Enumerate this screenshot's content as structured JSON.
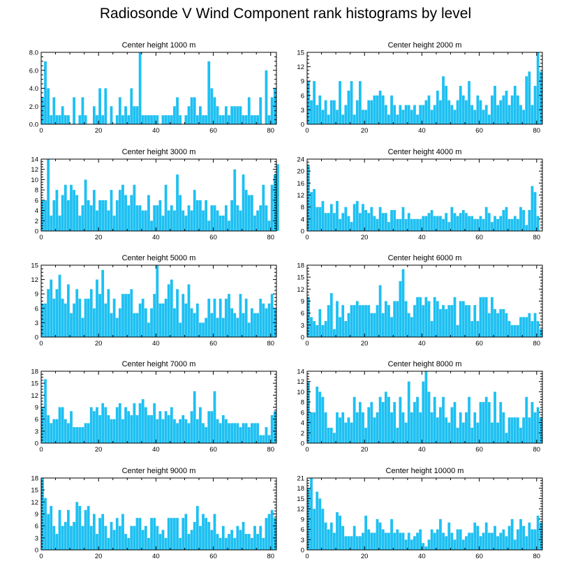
{
  "title": "Radiosonde V Wind Component rank histograms by level",
  "bar_color": "#1ec0f2",
  "chart_data": [
    {
      "type": "bar",
      "title": "Center height 1000 m",
      "xticks": [
        0,
        20,
        40,
        60,
        80
      ],
      "yticks": [
        "0.0",
        "2.0",
        "4.0",
        "6.0",
        "8.0"
      ],
      "ylim": [
        0,
        8
      ],
      "xlim": [
        0,
        82
      ],
      "values": [
        3,
        7,
        4,
        1,
        3,
        1,
        1,
        2,
        1,
        1,
        0,
        3,
        0,
        1,
        3,
        1,
        0,
        0,
        2,
        1,
        4,
        1,
        4,
        0,
        2,
        0,
        1,
        3,
        1,
        2,
        1,
        4,
        2,
        2,
        8,
        1,
        1,
        1,
        1,
        1,
        1,
        0,
        1,
        1,
        1,
        1,
        2,
        3,
        1,
        0,
        1,
        2,
        3,
        3,
        1,
        2,
        1,
        1,
        7,
        4,
        3,
        2,
        1,
        1,
        2,
        1,
        2,
        2,
        2,
        2,
        1,
        1,
        3,
        1,
        1,
        1,
        3,
        0,
        6,
        1,
        3,
        4
      ]
    },
    {
      "type": "bar",
      "title": "Center height 2000 m",
      "xticks": [
        0,
        20,
        40,
        60,
        80
      ],
      "yticks": [
        "0",
        "3",
        "6",
        "9",
        "12",
        "15"
      ],
      "ylim": [
        0,
        15
      ],
      "xlim": [
        0,
        82
      ],
      "values": [
        9,
        5,
        9,
        4,
        6,
        3,
        5,
        2,
        5,
        5,
        3,
        9,
        2,
        4,
        7,
        9,
        2,
        5,
        9,
        3,
        3,
        5,
        5,
        6,
        6,
        7,
        6,
        4,
        2,
        6,
        4,
        2,
        4,
        3,
        4,
        4,
        3,
        4,
        2,
        4,
        4,
        5,
        6,
        3,
        4,
        7,
        5,
        10,
        8,
        5,
        4,
        3,
        5,
        8,
        6,
        5,
        9,
        4,
        3,
        6,
        5,
        3,
        4,
        2,
        6,
        8,
        4,
        5,
        6,
        7,
        4,
        6,
        8,
        6,
        4,
        3,
        10,
        11,
        4,
        8,
        15,
        11
      ]
    },
    {
      "type": "bar",
      "title": "Center height 3000 m",
      "xticks": [
        0,
        20,
        40,
        60,
        80
      ],
      "yticks": [
        "0",
        "2",
        "4",
        "6",
        "8",
        "10",
        "12",
        "14"
      ],
      "ylim": [
        0,
        14
      ],
      "xlim": [
        0,
        82
      ],
      "values": [
        6,
        6,
        14,
        3,
        6,
        8,
        3,
        7,
        9,
        6,
        9,
        8,
        7,
        3,
        5,
        10,
        6,
        5,
        8,
        4,
        6,
        6,
        6,
        4,
        8,
        3,
        6,
        8,
        9,
        7,
        5,
        7,
        9,
        5,
        5,
        4,
        4,
        7,
        2,
        5,
        5,
        6,
        3,
        9,
        4,
        5,
        4,
        11,
        7,
        4,
        3,
        5,
        4,
        8,
        6,
        6,
        4,
        6,
        2,
        5,
        5,
        4,
        3,
        3,
        5,
        2,
        6,
        12,
        5,
        4,
        11,
        8,
        7,
        7,
        3,
        4,
        5,
        9,
        5,
        2,
        9,
        11,
        13
      ]
    },
    {
      "type": "bar",
      "title": "Center height 4000 m",
      "xticks": [
        0,
        20,
        40,
        60,
        80
      ],
      "yticks": [
        "0",
        "4",
        "8",
        "12",
        "16",
        "20",
        "24"
      ],
      "ylim": [
        0,
        24
      ],
      "xlim": [
        0,
        82
      ],
      "values": [
        22,
        13,
        14,
        8,
        8,
        10,
        6,
        6,
        9,
        6,
        10,
        4,
        6,
        8,
        5,
        3,
        9,
        10,
        6,
        9,
        7,
        6,
        8,
        5,
        4,
        8,
        6,
        6,
        3,
        7,
        7,
        4,
        4,
        8,
        4,
        6,
        4,
        4,
        4,
        4,
        5,
        5,
        6,
        7,
        5,
        5,
        5,
        4,
        6,
        3,
        8,
        6,
        5,
        6,
        7,
        6,
        5,
        5,
        4,
        4,
        5,
        4,
        8,
        6,
        3,
        5,
        4,
        5,
        7,
        8,
        4,
        4,
        5,
        4,
        8,
        7,
        2,
        7,
        15,
        13,
        5
      ]
    },
    {
      "type": "bar",
      "title": "Center height 5000 m",
      "xticks": [
        0,
        20,
        40,
        60,
        80
      ],
      "yticks": [
        "0",
        "3",
        "6",
        "9",
        "12",
        "15"
      ],
      "ylim": [
        0,
        15
      ],
      "xlim": [
        0,
        82
      ],
      "values": [
        7,
        7,
        10,
        12,
        8,
        10,
        13,
        8,
        7,
        11,
        5,
        7,
        10,
        8,
        4,
        8,
        8,
        10,
        6,
        12,
        9,
        14,
        7,
        10,
        5,
        8,
        4,
        6,
        9,
        9,
        9,
        10,
        5,
        5,
        7,
        8,
        6,
        3,
        6,
        9,
        15,
        7,
        7,
        8,
        11,
        12,
        6,
        10,
        3,
        9,
        7,
        11,
        6,
        5,
        7,
        3,
        3,
        4,
        8,
        5,
        8,
        4,
        8,
        4,
        8,
        9,
        6,
        5,
        4,
        9,
        5,
        8,
        3,
        6,
        5,
        5,
        8,
        7,
        6,
        7,
        9,
        6
      ]
    },
    {
      "type": "bar",
      "title": "Center height 6000 m",
      "xticks": [
        0,
        20,
        40,
        60,
        80
      ],
      "yticks": [
        "0",
        "3",
        "6",
        "9",
        "12",
        "15",
        "18"
      ],
      "ylim": [
        0,
        18
      ],
      "xlim": [
        0,
        82
      ],
      "values": [
        10,
        5,
        4,
        3,
        7,
        3,
        4,
        8,
        11,
        2,
        9,
        5,
        8,
        4,
        6,
        8,
        8,
        9,
        8,
        8,
        8,
        8,
        6,
        6,
        8,
        13,
        6,
        9,
        8,
        5,
        9,
        9,
        14,
        17,
        9,
        6,
        5,
        8,
        10,
        10,
        8,
        10,
        9,
        4,
        10,
        9,
        7,
        8,
        7,
        8,
        8,
        10,
        3,
        9,
        9,
        8,
        8,
        4,
        8,
        4,
        10,
        10,
        10,
        6,
        10,
        7,
        6,
        7,
        7,
        6,
        4,
        3,
        3,
        3,
        5,
        5,
        5,
        6,
        4,
        6,
        4,
        2
      ]
    },
    {
      "type": "bar",
      "title": "Center height 7000 m",
      "xticks": [
        0,
        20,
        40,
        60,
        80
      ],
      "yticks": [
        "0",
        "3",
        "6",
        "9",
        "12",
        "15",
        "18"
      ],
      "ylim": [
        0,
        18
      ],
      "xlim": [
        0,
        82
      ],
      "values": [
        9,
        16,
        7,
        5,
        6,
        6,
        9,
        9,
        6,
        5,
        8,
        4,
        4,
        4,
        4,
        5,
        5,
        9,
        8,
        9,
        7,
        10,
        9,
        7,
        6,
        6,
        9,
        10,
        6,
        9,
        8,
        7,
        10,
        7,
        10,
        11,
        9,
        7,
        7,
        10,
        6,
        8,
        6,
        8,
        7,
        9,
        6,
        5,
        6,
        7,
        6,
        5,
        8,
        13,
        6,
        9,
        5,
        4,
        8,
        8,
        13,
        6,
        5,
        7,
        6,
        5,
        5,
        5,
        5,
        4,
        5,
        5,
        4,
        5,
        5,
        5,
        2,
        2,
        4,
        2,
        7,
        8
      ]
    },
    {
      "type": "bar",
      "title": "Center height 8000 m",
      "xticks": [
        0,
        20,
        40,
        60,
        80
      ],
      "yticks": [
        "0",
        "2",
        "4",
        "6",
        "8",
        "10",
        "12",
        "14"
      ],
      "ylim": [
        0,
        14
      ],
      "xlim": [
        0,
        82
      ],
      "values": [
        12,
        6,
        6,
        11,
        10,
        9,
        6,
        3,
        3,
        2,
        6,
        5,
        6,
        4,
        5,
        4,
        9,
        6,
        8,
        6,
        3,
        7,
        8,
        5,
        6,
        9,
        8,
        10,
        9,
        6,
        8,
        3,
        9,
        6,
        4,
        12,
        6,
        8,
        9,
        6,
        12,
        14,
        10,
        6,
        9,
        5,
        7,
        9,
        5,
        4,
        7,
        8,
        3,
        6,
        4,
        6,
        9,
        3,
        6,
        4,
        8,
        8,
        9,
        8,
        4,
        10,
        4,
        8,
        6,
        2,
        5,
        5,
        5,
        5,
        3,
        5,
        9,
        5,
        8,
        6,
        7,
        5
      ]
    },
    {
      "type": "bar",
      "title": "Center height 9000 m",
      "xticks": [
        0,
        20,
        40,
        60,
        80
      ],
      "yticks": [
        "0",
        "3",
        "6",
        "9",
        "12",
        "15",
        "18"
      ],
      "ylim": [
        0,
        18
      ],
      "xlim": [
        0,
        82
      ],
      "values": [
        18,
        13,
        9,
        11,
        6,
        4,
        10,
        6,
        7,
        10,
        6,
        7,
        12,
        11,
        6,
        10,
        11,
        6,
        9,
        4,
        8,
        9,
        6,
        3,
        7,
        5,
        8,
        6,
        9,
        4,
        3,
        6,
        6,
        8,
        8,
        5,
        6,
        3,
        8,
        8,
        6,
        4,
        5,
        3,
        8,
        8,
        8,
        8,
        3,
        8,
        9,
        4,
        5,
        7,
        11,
        6,
        9,
        8,
        7,
        5,
        9,
        4,
        3,
        6,
        3,
        4,
        5,
        3,
        6,
        5,
        7,
        4,
        4,
        3,
        6,
        4,
        6,
        3,
        8,
        9,
        10,
        8
      ]
    },
    {
      "type": "bar",
      "title": "Center height 10000 m",
      "xticks": [
        0,
        20,
        40,
        60,
        80
      ],
      "yticks": [
        "0",
        "3",
        "6",
        "9",
        "12",
        "15",
        "18",
        "21"
      ],
      "ylim": [
        0,
        21
      ],
      "xlim": [
        0,
        82
      ],
      "values": [
        18,
        21,
        12,
        17,
        15,
        12,
        8,
        6,
        8,
        5,
        11,
        10,
        7,
        4,
        4,
        4,
        7,
        4,
        4,
        5,
        10,
        6,
        5,
        5,
        9,
        8,
        6,
        5,
        5,
        9,
        5,
        6,
        5,
        5,
        3,
        5,
        3,
        4,
        5,
        6,
        2,
        1,
        3,
        6,
        5,
        6,
        9,
        5,
        4,
        8,
        5,
        3,
        6,
        6,
        3,
        4,
        5,
        5,
        8,
        7,
        4,
        5,
        8,
        5,
        5,
        7,
        4,
        5,
        6,
        4,
        7,
        9,
        3,
        6,
        9,
        7,
        4,
        8,
        6,
        6,
        10,
        8
      ]
    }
  ]
}
